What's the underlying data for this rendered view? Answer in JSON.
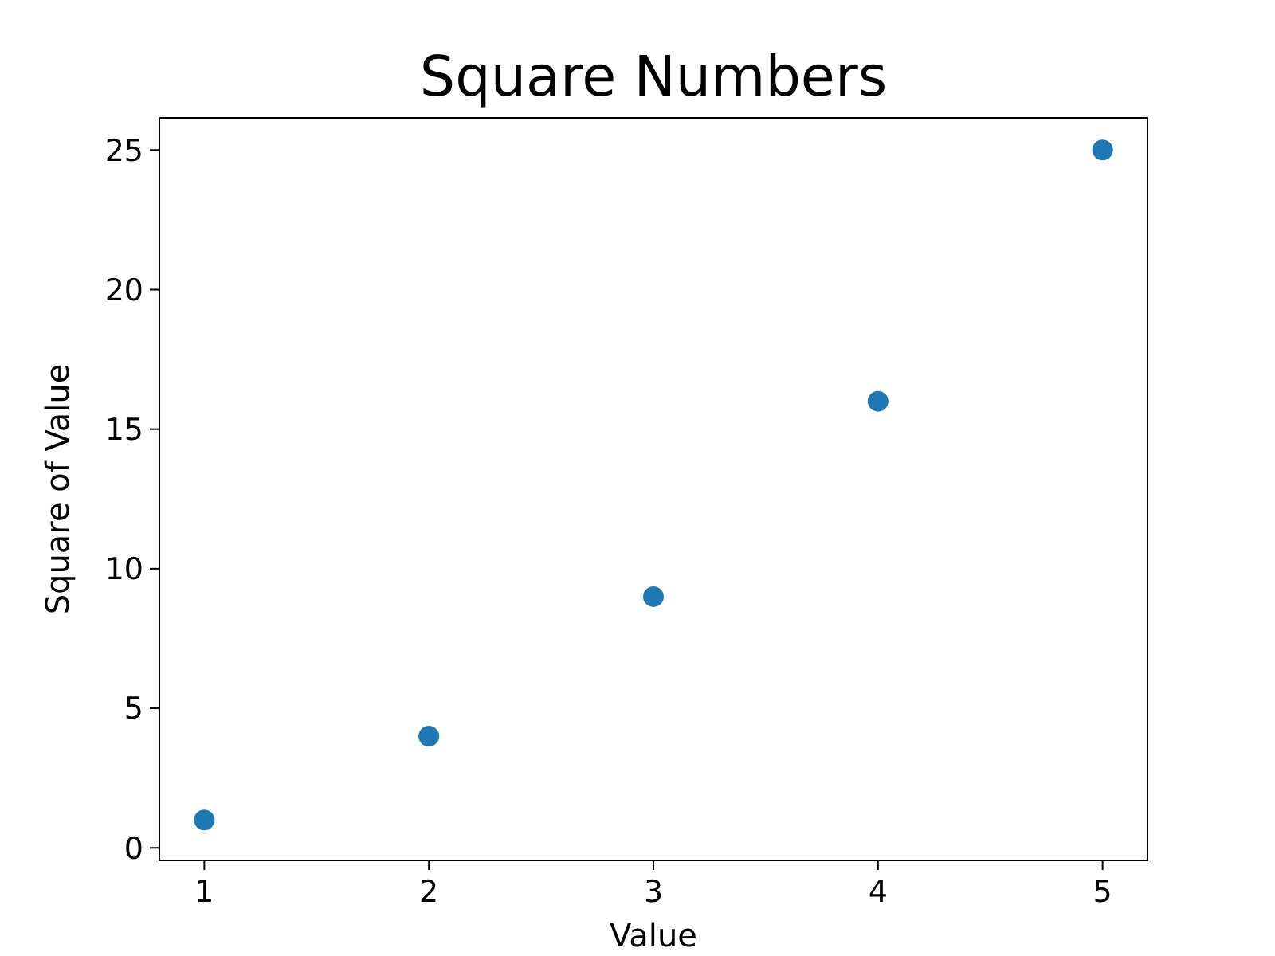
{
  "chart_data": {
    "type": "scatter",
    "title": "Square Numbers",
    "xlabel": "Value",
    "ylabel": "Square of Value",
    "x": [
      1,
      2,
      3,
      4,
      5
    ],
    "series": [
      {
        "color": "#1f77b4",
        "values": [
          1,
          4,
          9,
          16,
          25
        ]
      }
    ],
    "xlim": [
      0.8,
      5.2
    ],
    "xticks": [
      1,
      2,
      3,
      4,
      5
    ],
    "ylim": [
      -0.45,
      26.15
    ],
    "yticks": [
      0,
      5,
      10,
      15,
      20,
      25
    ],
    "marker": "circle"
  }
}
